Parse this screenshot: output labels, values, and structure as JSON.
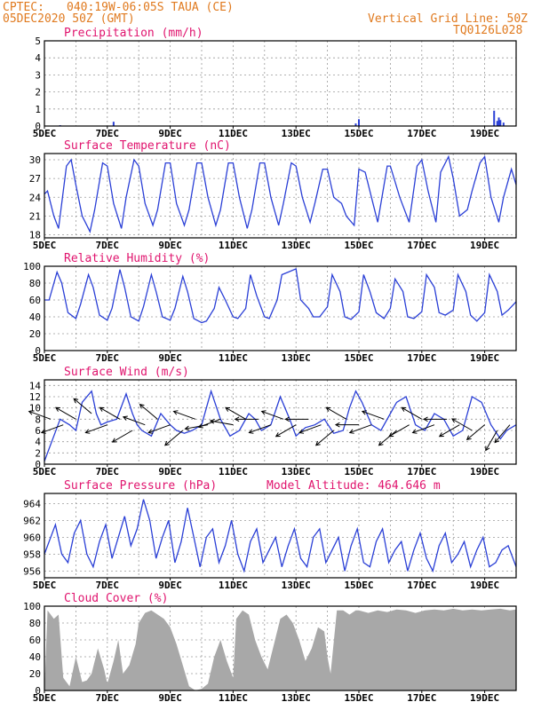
{
  "header": {
    "source": "CPTEC:",
    "location": "040:19W-06:05S  TAUA (CE)",
    "date": "05DEC2020 50Z (GMT)",
    "grid_note": "Vertical Grid Line: 50Z",
    "code": "TQ0126L028"
  },
  "chart_data": [
    {
      "id": "precip",
      "type": "bar",
      "title": "Precipitation (mm/h)",
      "ylim": [
        0,
        5
      ],
      "yticks": [
        0,
        1,
        2,
        3,
        4,
        5
      ],
      "xlim": [
        0,
        15
      ],
      "xticks": [
        "5DEC",
        "7DEC",
        "9DEC",
        "11DEC",
        "13DEC",
        "15DEC",
        "17DEC",
        "19DEC"
      ],
      "x": [
        0.5,
        2.2,
        9.9,
        10.0,
        14.3,
        14.4,
        14.45,
        14.5,
        14.6
      ],
      "values": [
        0.05,
        0.25,
        0.15,
        0.4,
        0.9,
        0.3,
        0.5,
        0.35,
        0.2
      ]
    },
    {
      "id": "temp",
      "type": "line",
      "title": "Surface Temperature (nC)",
      "ylim": [
        17.5,
        31
      ],
      "yticks": [
        18,
        21,
        24,
        27,
        30
      ],
      "xlim": [
        0,
        15
      ],
      "xticks": [
        "5DEC",
        "7DEC",
        "9DEC",
        "11DEC",
        "13DEC",
        "15DEC",
        "17DEC",
        "19DEC"
      ],
      "x": [
        0.0,
        0.1,
        0.3,
        0.45,
        0.7,
        0.85,
        1.0,
        1.2,
        1.45,
        1.6,
        1.85,
        2.0,
        2.2,
        2.45,
        2.6,
        2.85,
        3.0,
        3.2,
        3.45,
        3.6,
        3.85,
        4.0,
        4.2,
        4.45,
        4.6,
        4.85,
        5.0,
        5.2,
        5.45,
        5.6,
        5.85,
        6.0,
        6.2,
        6.45,
        6.6,
        6.85,
        7.0,
        7.2,
        7.45,
        7.6,
        7.85,
        8.0,
        8.2,
        8.45,
        8.6,
        8.85,
        9.0,
        9.2,
        9.45,
        9.6,
        9.85,
        10.0,
        10.2,
        10.45,
        10.6,
        10.9,
        11.0,
        11.3,
        11.6,
        11.85,
        12.0,
        12.2,
        12.45,
        12.6,
        12.85,
        13.0,
        13.2,
        13.45,
        13.6,
        13.85,
        14.0,
        14.2,
        14.45,
        14.6,
        14.85,
        15.0
      ],
      "values": [
        24.5,
        25,
        21,
        19,
        29,
        30,
        26,
        21,
        18.5,
        22,
        29.5,
        29,
        23,
        19,
        24,
        30,
        29,
        23,
        19.5,
        22,
        29.5,
        29.5,
        23,
        19.5,
        22,
        29.5,
        29.5,
        24,
        19.5,
        22,
        29.5,
        29.5,
        24,
        19,
        22,
        29.5,
        29.5,
        24,
        19.5,
        23,
        29.5,
        29,
        24,
        20,
        23,
        28.5,
        28.5,
        24,
        23,
        21,
        19.5,
        28.5,
        28,
        23,
        20,
        29,
        29,
        24,
        20,
        29,
        30,
        25,
        20,
        28,
        30.5,
        27,
        21,
        22,
        25,
        29.5,
        30.5,
        24,
        20,
        24,
        28.5,
        26
      ]
    },
    {
      "id": "rh",
      "type": "line",
      "title": "Relative Humidity (%)",
      "ylim": [
        0,
        100
      ],
      "yticks": [
        0,
        20,
        40,
        60,
        80,
        100
      ],
      "xlim": [
        0,
        15
      ],
      "xticks": [
        "5DEC",
        "7DEC",
        "9DEC",
        "11DEC",
        "13DEC",
        "15DEC",
        "17DEC",
        "19DEC"
      ],
      "x": [
        0.0,
        0.15,
        0.4,
        0.55,
        0.75,
        1.0,
        1.15,
        1.4,
        1.55,
        1.75,
        2.0,
        2.15,
        2.4,
        2.55,
        2.75,
        3.0,
        3.15,
        3.4,
        3.55,
        3.75,
        4.0,
        4.15,
        4.4,
        4.55,
        4.75,
        5.0,
        5.15,
        5.4,
        5.55,
        5.75,
        6.0,
        6.15,
        6.4,
        6.55,
        6.75,
        7.0,
        7.15,
        7.4,
        7.55,
        7.75,
        8.0,
        8.15,
        8.4,
        8.55,
        8.75,
        9.0,
        9.15,
        9.4,
        9.55,
        9.75,
        10.0,
        10.15,
        10.35,
        10.55,
        10.8,
        11.0,
        11.15,
        11.4,
        11.55,
        11.75,
        12.0,
        12.15,
        12.4,
        12.55,
        12.75,
        13.0,
        13.15,
        13.4,
        13.55,
        13.75,
        14.0,
        14.15,
        14.4,
        14.55,
        14.75,
        15.0
      ],
      "values": [
        60,
        60,
        93,
        80,
        45,
        38,
        55,
        90,
        75,
        42,
        36,
        50,
        96,
        75,
        40,
        35,
        52,
        90,
        70,
        40,
        36,
        50,
        88,
        70,
        38,
        33,
        35,
        50,
        75,
        60,
        40,
        38,
        50,
        90,
        65,
        40,
        38,
        60,
        90,
        93,
        97,
        60,
        50,
        40,
        40,
        52,
        90,
        70,
        40,
        37,
        46,
        90,
        70,
        45,
        38,
        50,
        85,
        70,
        40,
        38,
        46,
        90,
        75,
        45,
        42,
        48,
        90,
        70,
        42,
        35,
        45,
        90,
        70,
        42,
        48,
        58
      ]
    },
    {
      "id": "wind",
      "type": "line",
      "title": "Surface Wind (m/s)",
      "ylim": [
        0,
        15
      ],
      "yticks": [
        0,
        2,
        4,
        6,
        8,
        10,
        12,
        14
      ],
      "xlim": [
        0,
        15
      ],
      "xticks": [
        "5DEC",
        "7DEC",
        "9DEC",
        "11DEC",
        "13DEC",
        "15DEC",
        "17DEC",
        "19DEC"
      ],
      "x": [
        0.0,
        0.1,
        0.3,
        0.5,
        0.8,
        1.0,
        1.2,
        1.5,
        1.65,
        1.8,
        2.0,
        2.3,
        2.6,
        2.8,
        2.95,
        3.1,
        3.4,
        3.7,
        4.0,
        4.2,
        4.45,
        4.7,
        5.0,
        5.3,
        5.6,
        5.9,
        6.2,
        6.5,
        6.7,
        6.9,
        7.2,
        7.5,
        7.8,
        8.0,
        8.3,
        8.6,
        8.9,
        9.2,
        9.5,
        9.7,
        9.9,
        10.1,
        10.4,
        10.7,
        11.0,
        11.2,
        11.5,
        11.8,
        12.1,
        12.4,
        12.7,
        13.0,
        13.3,
        13.6,
        13.9,
        14.2,
        14.5,
        14.7,
        15.0
      ],
      "values": [
        0.5,
        2,
        5,
        8,
        7,
        6,
        11,
        13,
        9,
        7,
        7.5,
        8,
        12.5,
        9,
        7,
        6,
        5,
        9,
        7,
        6,
        5.5,
        6,
        7,
        13,
        8,
        5,
        6,
        9,
        8,
        6,
        7,
        12,
        8,
        5,
        6.5,
        7,
        8,
        5.5,
        6,
        10,
        13,
        11,
        7,
        6,
        9,
        11,
        12,
        7,
        6,
        9,
        8,
        5,
        6,
        12,
        11,
        7,
        4.5,
        6,
        7
      ],
      "arrows": {
        "x": [
          0.2,
          0.6,
          1.0,
          1.5,
          2.0,
          2.4,
          2.8,
          3.2,
          3.6,
          4.0,
          4.4,
          4.8,
          5.2,
          5.6,
          6.0,
          6.4,
          6.8,
          7.2,
          7.6,
          8.0,
          8.4,
          8.8,
          9.2,
          9.6,
          10.0,
          10.4,
          10.8,
          11.2,
          11.6,
          12.0,
          12.4,
          12.8,
          13.2,
          13.6,
          14.0,
          14.4,
          14.8
        ],
        "speed": [
          8,
          7,
          8,
          9,
          7,
          8,
          6,
          7,
          8,
          7,
          6,
          8,
          7,
          8,
          7,
          8,
          8,
          7,
          8,
          7,
          8,
          7,
          6,
          8,
          7,
          7,
          8,
          6,
          7,
          8,
          7,
          8,
          7,
          6,
          7,
          6,
          7
        ],
        "dir_deg": [
          160,
          200,
          150,
          140,
          200,
          150,
          210,
          160,
          140,
          200,
          220,
          160,
          190,
          200,
          170,
          150,
          180,
          200,
          160,
          210,
          180,
          200,
          220,
          150,
          180,
          200,
          160,
          220,
          210,
          150,
          200,
          180,
          210,
          150,
          220,
          240,
          230
        ]
      }
    },
    {
      "id": "pressure",
      "type": "line",
      "title": "Surface Pressure (hPa)",
      "subtitle": "Model Altitude: 464.646 m",
      "ylim": [
        955.2,
        965.2
      ],
      "yticks": [
        956,
        958,
        960,
        962,
        964
      ],
      "xlim": [
        0,
        15
      ],
      "xticks": [
        "5DEC",
        "7DEC",
        "9DEC",
        "11DEC",
        "13DEC",
        "15DEC",
        "17DEC",
        "19DEC"
      ],
      "x": [
        0.0,
        0.15,
        0.35,
        0.55,
        0.75,
        0.95,
        1.15,
        1.35,
        1.55,
        1.75,
        1.95,
        2.15,
        2.35,
        2.55,
        2.75,
        2.95,
        3.15,
        3.35,
        3.55,
        3.75,
        3.95,
        4.15,
        4.35,
        4.55,
        4.75,
        4.95,
        5.15,
        5.35,
        5.55,
        5.75,
        5.95,
        6.15,
        6.35,
        6.55,
        6.75,
        6.95,
        7.15,
        7.35,
        7.55,
        7.75,
        7.95,
        8.15,
        8.35,
        8.55,
        8.75,
        8.95,
        9.15,
        9.35,
        9.55,
        9.75,
        9.95,
        10.15,
        10.35,
        10.55,
        10.75,
        10.95,
        11.15,
        11.35,
        11.55,
        11.75,
        11.95,
        12.15,
        12.35,
        12.55,
        12.75,
        12.95,
        13.15,
        13.35,
        13.55,
        13.75,
        13.95,
        14.15,
        14.35,
        14.55,
        14.75,
        15.0
      ],
      "values": [
        958,
        959.5,
        961.5,
        958,
        957,
        960.5,
        962,
        958,
        956.5,
        959.5,
        961.5,
        957.5,
        960,
        962.5,
        959,
        961,
        964.5,
        962,
        957.5,
        960,
        962,
        957,
        959.5,
        963.5,
        960,
        956.5,
        960,
        961,
        957,
        959,
        962,
        958,
        956,
        959.5,
        961,
        957,
        958.5,
        960,
        956.5,
        959,
        961,
        957.5,
        956.5,
        960,
        961,
        957,
        958.5,
        960,
        956,
        959,
        961,
        957,
        956.5,
        959.5,
        961,
        957,
        958.5,
        959.5,
        956,
        958.5,
        960.5,
        957.5,
        956,
        959,
        960.5,
        957,
        958,
        959.5,
        956.5,
        958.5,
        960,
        956.5,
        957,
        958.5,
        959,
        956.5
      ]
    },
    {
      "id": "cloud",
      "type": "area",
      "title": "Cloud Cover (%)",
      "ylim": [
        0,
        100
      ],
      "yticks": [
        0,
        20,
        40,
        60,
        80,
        100
      ],
      "xlim": [
        0,
        15
      ],
      "xticks": [
        "5DEC",
        "7DEC",
        "9DEC",
        "11DEC",
        "13DEC",
        "15DEC",
        "17DEC",
        "19DEC"
      ],
      "x": [
        0.0,
        0.1,
        0.3,
        0.45,
        0.6,
        0.8,
        1.0,
        1.2,
        1.35,
        1.5,
        1.7,
        1.9,
        2.0,
        2.2,
        2.35,
        2.5,
        2.7,
        2.9,
        3.0,
        3.2,
        3.4,
        3.6,
        3.8,
        4.0,
        4.2,
        4.4,
        4.6,
        4.8,
        5.0,
        5.2,
        5.4,
        5.6,
        5.8,
        6.0,
        6.1,
        6.3,
        6.5,
        6.7,
        6.9,
        7.1,
        7.3,
        7.5,
        7.7,
        7.9,
        8.1,
        8.3,
        8.5,
        8.7,
        8.9,
        9.0,
        9.1,
        9.3,
        9.5,
        9.7,
        9.9,
        10.0,
        10.3,
        10.6,
        10.9,
        11.2,
        11.5,
        11.8,
        12.1,
        12.4,
        12.7,
        13.0,
        13.3,
        13.6,
        13.9,
        14.2,
        14.5,
        14.8,
        15.0
      ],
      "values": [
        0,
        95,
        85,
        90,
        15,
        5,
        40,
        10,
        12,
        20,
        50,
        25,
        8,
        35,
        60,
        20,
        30,
        55,
        80,
        92,
        95,
        90,
        85,
        75,
        55,
        30,
        5,
        0,
        2,
        8,
        40,
        60,
        35,
        15,
        85,
        95,
        90,
        60,
        40,
        25,
        55,
        85,
        90,
        80,
        60,
        35,
        50,
        75,
        70,
        40,
        20,
        95,
        95,
        90,
        95,
        95,
        92,
        95,
        93,
        96,
        95,
        92,
        95,
        96,
        95,
        97,
        95,
        96,
        95,
        96,
        97,
        95,
        96
      ]
    }
  ]
}
